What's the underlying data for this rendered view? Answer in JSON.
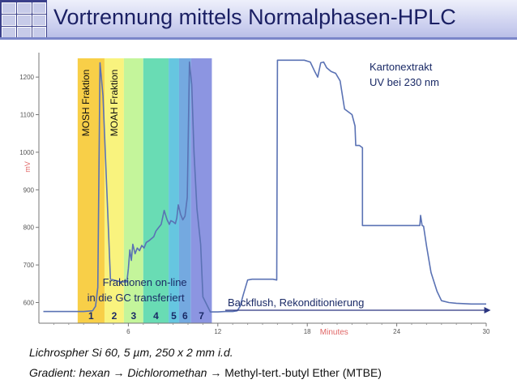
{
  "slide": {
    "title": "Vortrennung mittels Normalphasen-HPLC",
    "caption_line1": "Lichrospher Si 60, 5 µm, 250 x 2 mm i.d.",
    "caption_line2_italic": "Gradient: hexan → Dichloromethan →",
    "caption_line2_rest": "Methyl-tert.-butyl Ether (MTBE)"
  },
  "colors": {
    "title_text": "#1a1f63",
    "trace": "#5a72b4",
    "axis_text": "#555555",
    "xlabel": "#e06666",
    "band_1": "#f8cf48",
    "band_2": "#f9f37e",
    "band_3": "#c4f59b",
    "band_4": "#69dcb4",
    "band_5": "#66c6e0",
    "band_6": "#74a9e0",
    "band_7": "#8c95e1"
  },
  "chart_data": {
    "type": "line",
    "title": "",
    "xlabel": "Minutes",
    "ylabel": "mV",
    "xlim": [
      0,
      30
    ],
    "ylim": [
      545,
      1265
    ],
    "x_ticks": [
      6,
      12,
      18,
      24,
      30
    ],
    "y_ticks": [
      600,
      700,
      800,
      900,
      1000,
      1100,
      1200
    ],
    "grid": false,
    "series": [
      {
        "name": "Kartonextrakt UV bei 230 nm",
        "x": [
          0.3,
          3.0,
          3.6,
          3.8,
          3.95,
          4.1,
          4.3,
          4.8,
          5.5,
          5.9,
          6.0,
          6.1,
          6.2,
          6.3,
          6.45,
          6.6,
          6.75,
          6.9,
          7.05,
          7.2,
          7.4,
          7.55,
          7.7,
          7.85,
          8.0,
          8.2,
          8.4,
          8.6,
          8.75,
          8.85,
          9.0,
          9.15,
          9.25,
          9.35,
          9.5,
          9.65,
          9.8,
          9.95,
          10.1,
          10.25,
          10.4,
          10.6,
          10.85,
          11.0,
          11.5,
          12.0,
          12.5,
          13.0,
          13.3,
          13.5,
          13.7,
          14.0,
          14.3,
          14.6,
          15.0,
          15.3,
          15.7,
          15.95,
          16.0,
          16.2,
          16.4,
          17.0,
          17.8,
          18.2,
          18.5,
          18.7,
          18.9,
          19.1,
          19.3,
          19.6,
          19.9,
          20.2,
          20.5,
          21.0,
          21.2,
          21.25,
          21.5,
          21.7,
          21.7,
          23.0,
          25.0,
          25.55,
          25.6,
          25.7,
          25.8,
          26.0,
          26.3,
          26.7,
          27.0,
          27.5,
          28.0,
          29.0,
          30.0
        ],
        "values": [
          576,
          576,
          578,
          590,
          640,
          1238,
          1150,
          662,
          655,
          655,
          690,
          740,
          712,
          755,
          730,
          745,
          738,
          752,
          745,
          760,
          765,
          770,
          775,
          790,
          798,
          808,
          845,
          820,
          808,
          818,
          815,
          810,
          825,
          860,
          835,
          820,
          830,
          880,
          1240,
          1180,
          1000,
          850,
          755,
          615,
          575,
          575,
          576,
          576,
          578,
          590,
          620,
          660,
          662,
          662,
          662,
          662,
          662,
          660,
          1245,
          1245,
          1245,
          1245,
          1245,
          1240,
          1215,
          1200,
          1238,
          1240,
          1225,
          1215,
          1210,
          1190,
          1115,
          1100,
          1070,
          1018,
          1018,
          1012,
          805,
          805,
          805,
          805,
          832,
          805,
          803,
          750,
          680,
          630,
          605,
          600,
          598,
          596,
          596
        ],
        "annotations": [
          {
            "x": 4.0,
            "value": "MOSH Fraktion"
          },
          {
            "x": 5.4,
            "value": "MOAH Fraktion"
          },
          {
            "x": 15.8,
            "value": "Kartonextrakt UV bei 230 nm"
          }
        ]
      }
    ],
    "fraction_bands": [
      {
        "label": "1",
        "x_start": 2.6,
        "x_end": 4.4
      },
      {
        "label": "2",
        "x_start": 4.4,
        "x_end": 5.7
      },
      {
        "label": "3",
        "x_start": 5.7,
        "x_end": 7.0
      },
      {
        "label": "4",
        "x_start": 7.0,
        "x_end": 8.7
      },
      {
        "label": "5",
        "x_start": 8.7,
        "x_end": 9.4
      },
      {
        "label": "6",
        "x_start": 9.4,
        "x_end": 10.2
      },
      {
        "label": "7",
        "x_start": 10.2,
        "x_end": 11.6
      }
    ],
    "band_note": "Fraktionen on-line\nin die GC transferiert",
    "backflush_label": "Backflush, Rekonditionierung",
    "backflush_arrow": {
      "x_start": 12.5,
      "x_end": 30.3
    }
  }
}
